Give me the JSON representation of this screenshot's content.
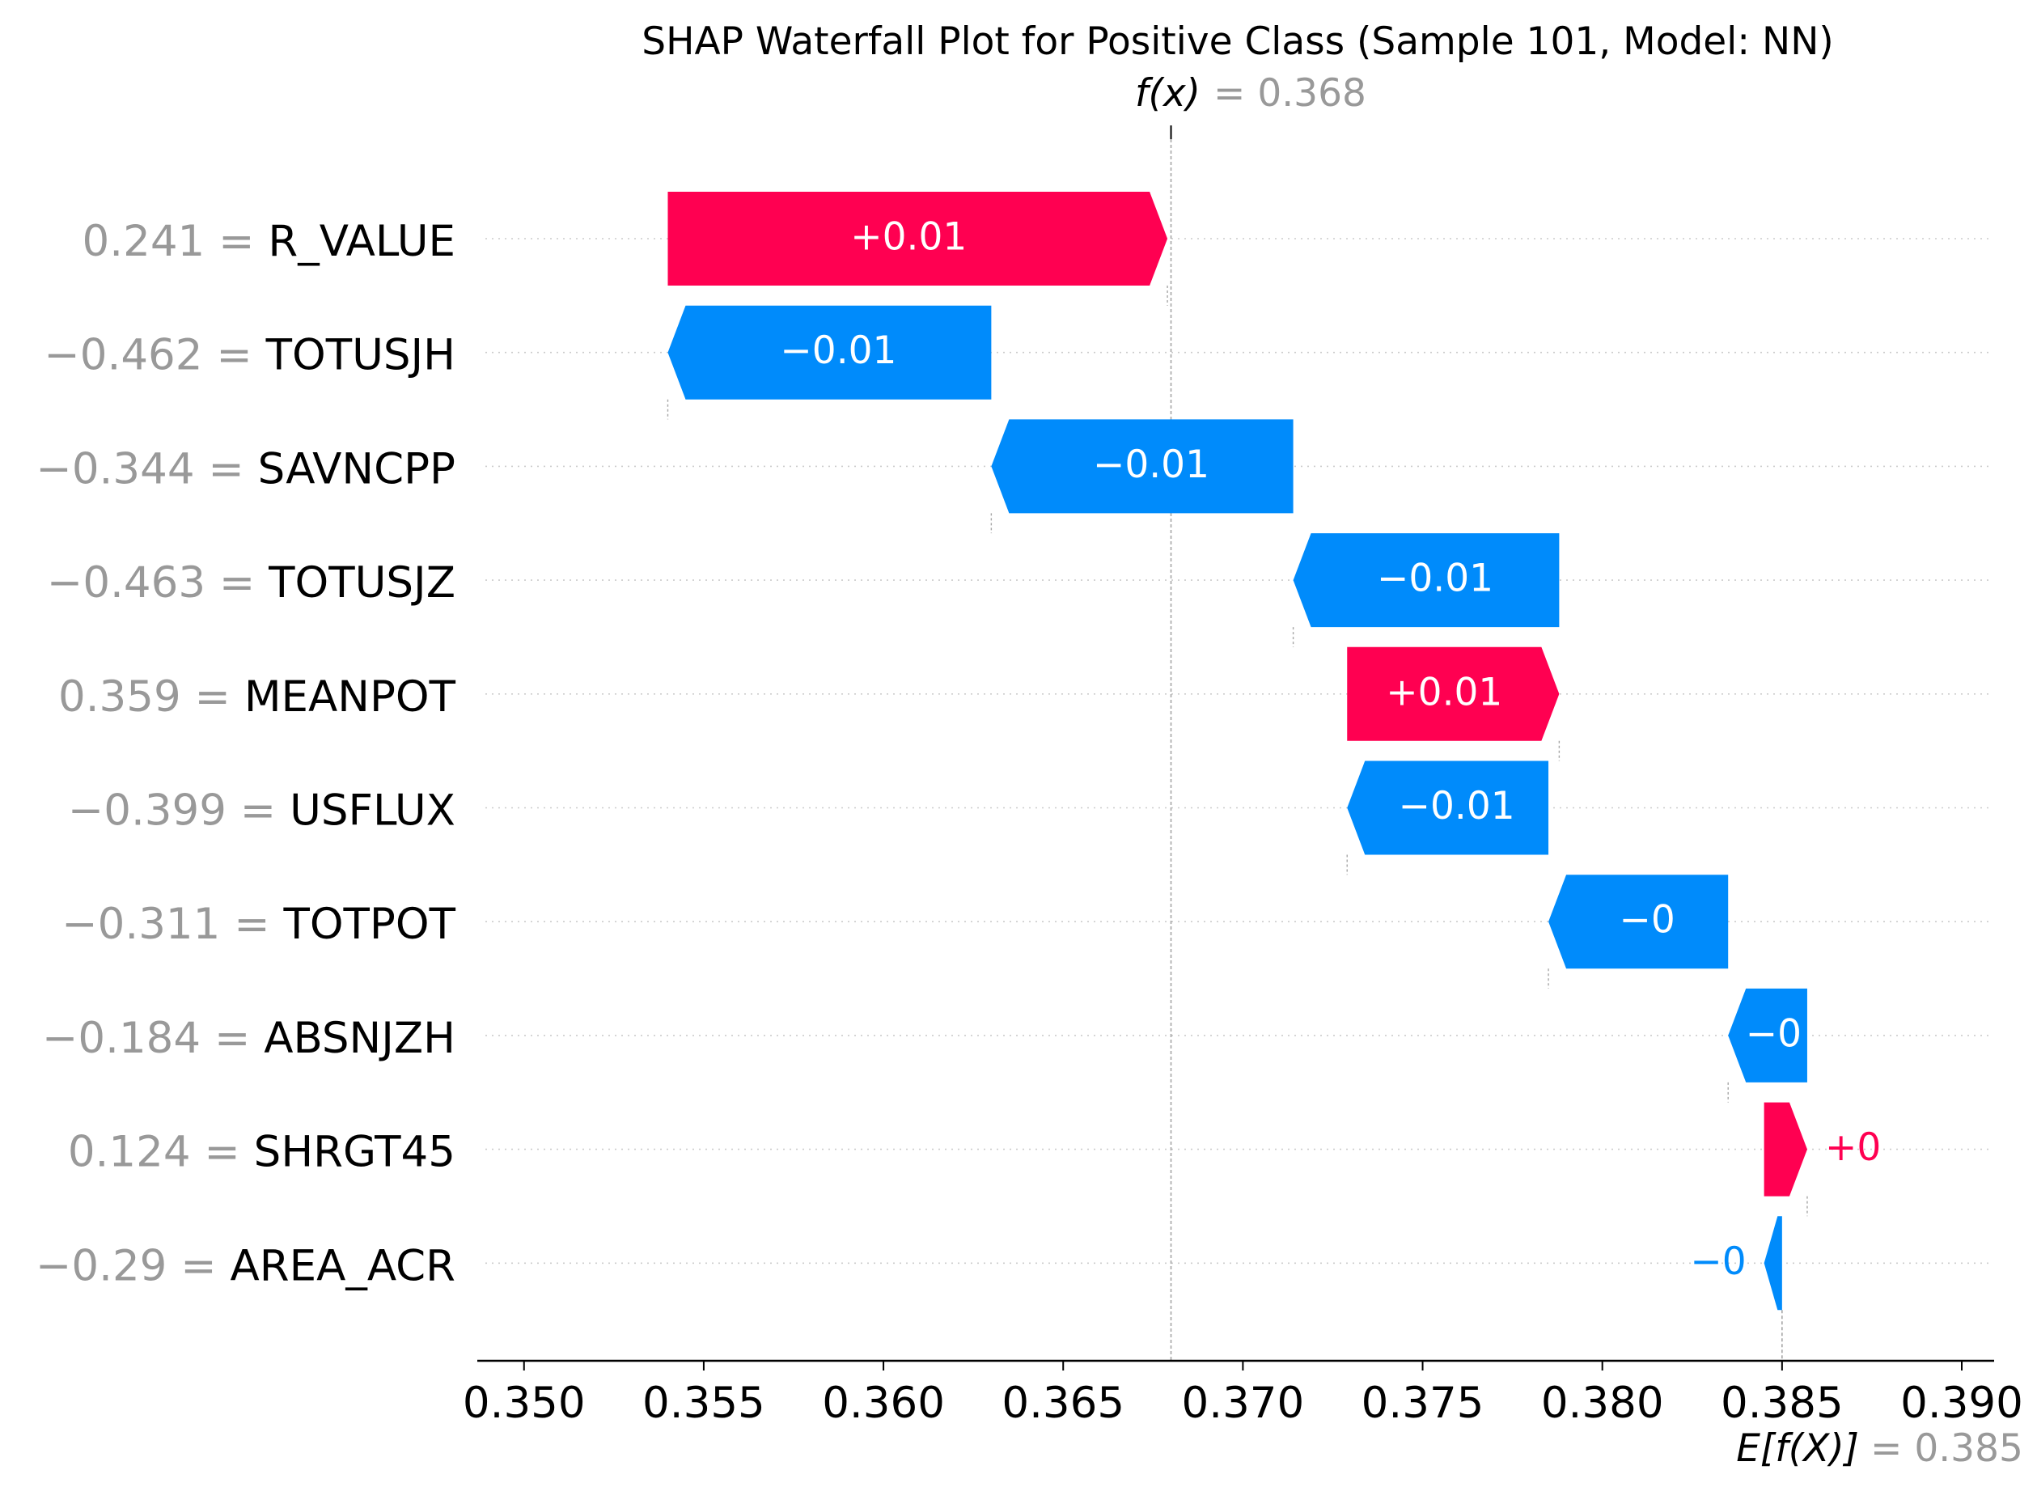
{
  "chart_data": {
    "type": "waterfall",
    "title": "SHAP Waterfall Plot for Positive Class (Sample 101, Model: NN)",
    "fx_label": "f(x)",
    "fx_value_text": "= 0.368",
    "fx": 0.368,
    "expected_label": "E[f(X)]",
    "expected_value_text": "= 0.385",
    "expected_value": 0.385,
    "xlim": [
      0.3487,
      0.3909
    ],
    "xticks": [
      "0.350",
      "0.355",
      "0.360",
      "0.365",
      "0.370",
      "0.375",
      "0.380",
      "0.385",
      "0.390"
    ],
    "colors": {
      "positive": "#ff0051",
      "negative": "#008bfb",
      "value_gray": "#999999"
    },
    "features": [
      {
        "name": "R_VALUE",
        "value_text": "0.241 =",
        "start": 0.354,
        "end": 0.3679,
        "label": "+0.01"
      },
      {
        "name": "TOTUSJH",
        "value_text": "−0.462 =",
        "start": 0.363,
        "end": 0.354,
        "label": "−0.01"
      },
      {
        "name": "SAVNCPP",
        "value_text": "−0.344 =",
        "start": 0.3714,
        "end": 0.363,
        "label": "−0.01"
      },
      {
        "name": "TOTUSJZ",
        "value_text": "−0.463 =",
        "start": 0.3788,
        "end": 0.3714,
        "label": "−0.01"
      },
      {
        "name": "MEANPOT",
        "value_text": "0.359 =",
        "start": 0.3729,
        "end": 0.3788,
        "label": "+0.01"
      },
      {
        "name": "USFLUX",
        "value_text": "−0.399 =",
        "start": 0.3785,
        "end": 0.3729,
        "label": "−0.01"
      },
      {
        "name": "TOTPOT",
        "value_text": "−0.311 =",
        "start": 0.3835,
        "end": 0.3785,
        "label": "−0"
      },
      {
        "name": "ABSNJZH",
        "value_text": "−0.184 =",
        "start": 0.3857,
        "end": 0.3835,
        "label": "−0"
      },
      {
        "name": "SHRGT45",
        "value_text": "0.124 =",
        "start": 0.3845,
        "end": 0.3857,
        "label": "+0"
      },
      {
        "name": "AREA_ACR",
        "value_text": "−0.29 =",
        "start": 0.385,
        "end": 0.3845,
        "label": "−0"
      }
    ]
  }
}
